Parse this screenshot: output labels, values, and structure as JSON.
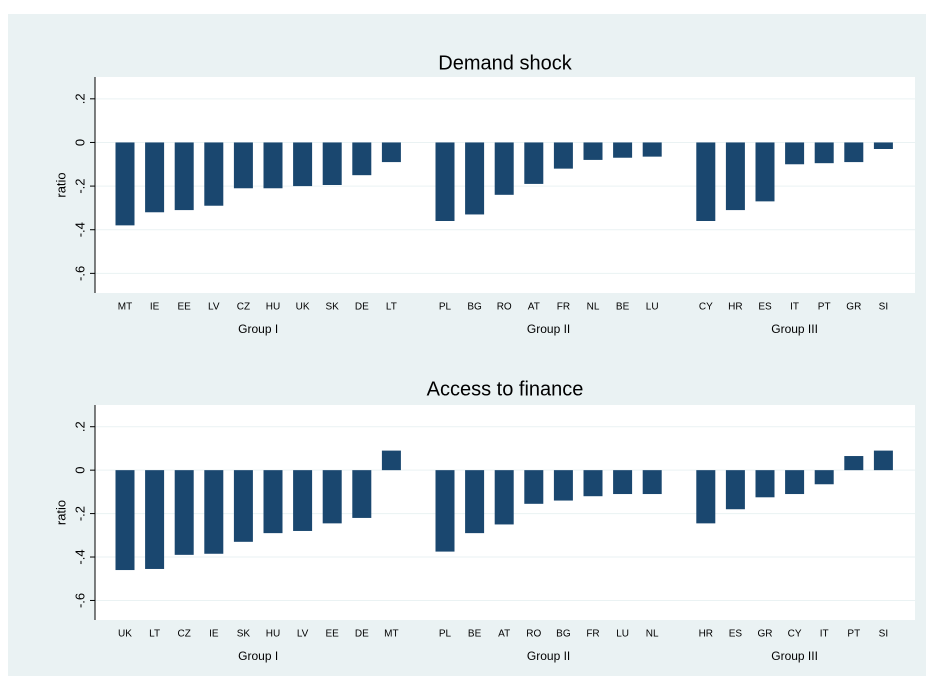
{
  "chart_data": [
    {
      "type": "bar",
      "title": "Demand shock",
      "y_label": "ratio",
      "color": "#1a476f",
      "grid": true,
      "ylim": [
        -0.69,
        0.3
      ],
      "yticks": [
        {
          "value": 0.2,
          "label": ".2"
        },
        0,
        {
          "value": -0.2,
          "label": "-.2"
        },
        {
          "value": -0.4,
          "label": "-.4"
        },
        {
          "value": -0.6,
          "label": "-.6"
        }
      ],
      "groups": [
        {
          "name": "Group I",
          "categories": [
            "MT",
            "IE",
            "EE",
            "LV",
            "CZ",
            "HU",
            "UK",
            "SK",
            "DE",
            "LT"
          ],
          "values": [
            -0.38,
            -0.32,
            -0.31,
            -0.29,
            -0.21,
            -0.21,
            -0.2,
            -0.195,
            -0.15,
            -0.09
          ]
        },
        {
          "name": "Group II",
          "categories": [
            "PL",
            "BG",
            "RO",
            "AT",
            "FR",
            "NL",
            "BE",
            "LU"
          ],
          "values": [
            -0.36,
            -0.33,
            -0.24,
            -0.19,
            -0.12,
            -0.08,
            -0.07,
            -0.065
          ]
        },
        {
          "name": "Group III",
          "categories": [
            "CY",
            "HR",
            "ES",
            "IT",
            "PT",
            "GR",
            "SI"
          ],
          "values": [
            -0.36,
            -0.31,
            -0.27,
            -0.1,
            -0.095,
            -0.09,
            -0.03
          ]
        }
      ]
    },
    {
      "type": "bar",
      "title": "Access to finance",
      "y_label": "ratio",
      "color": "#1a476f",
      "grid": true,
      "ylim": [
        -0.69,
        0.3
      ],
      "yticks": [
        {
          "value": 0.2,
          "label": ".2"
        },
        0,
        {
          "value": -0.2,
          "label": "-.2"
        },
        {
          "value": -0.4,
          "label": "-.4"
        },
        {
          "value": -0.6,
          "label": "-.6"
        }
      ],
      "groups": [
        {
          "name": "Group I",
          "categories": [
            "UK",
            "LT",
            "CZ",
            "IE",
            "SK",
            "HU",
            "LV",
            "EE",
            "DE",
            "MT"
          ],
          "values": [
            -0.46,
            -0.455,
            -0.39,
            -0.385,
            -0.33,
            -0.29,
            -0.28,
            -0.245,
            -0.22,
            0.09
          ]
        },
        {
          "name": "Group II",
          "categories": [
            "PL",
            "BE",
            "AT",
            "RO",
            "BG",
            "FR",
            "LU",
            "NL"
          ],
          "values": [
            -0.375,
            -0.29,
            -0.25,
            -0.155,
            -0.14,
            -0.12,
            -0.11,
            -0.11
          ]
        },
        {
          "name": "Group III",
          "categories": [
            "HR",
            "ES",
            "GR",
            "CY",
            "IT",
            "PT",
            "SI"
          ],
          "values": [
            -0.245,
            -0.18,
            -0.125,
            -0.11,
            -0.065,
            0.065,
            0.09
          ]
        }
      ]
    }
  ]
}
